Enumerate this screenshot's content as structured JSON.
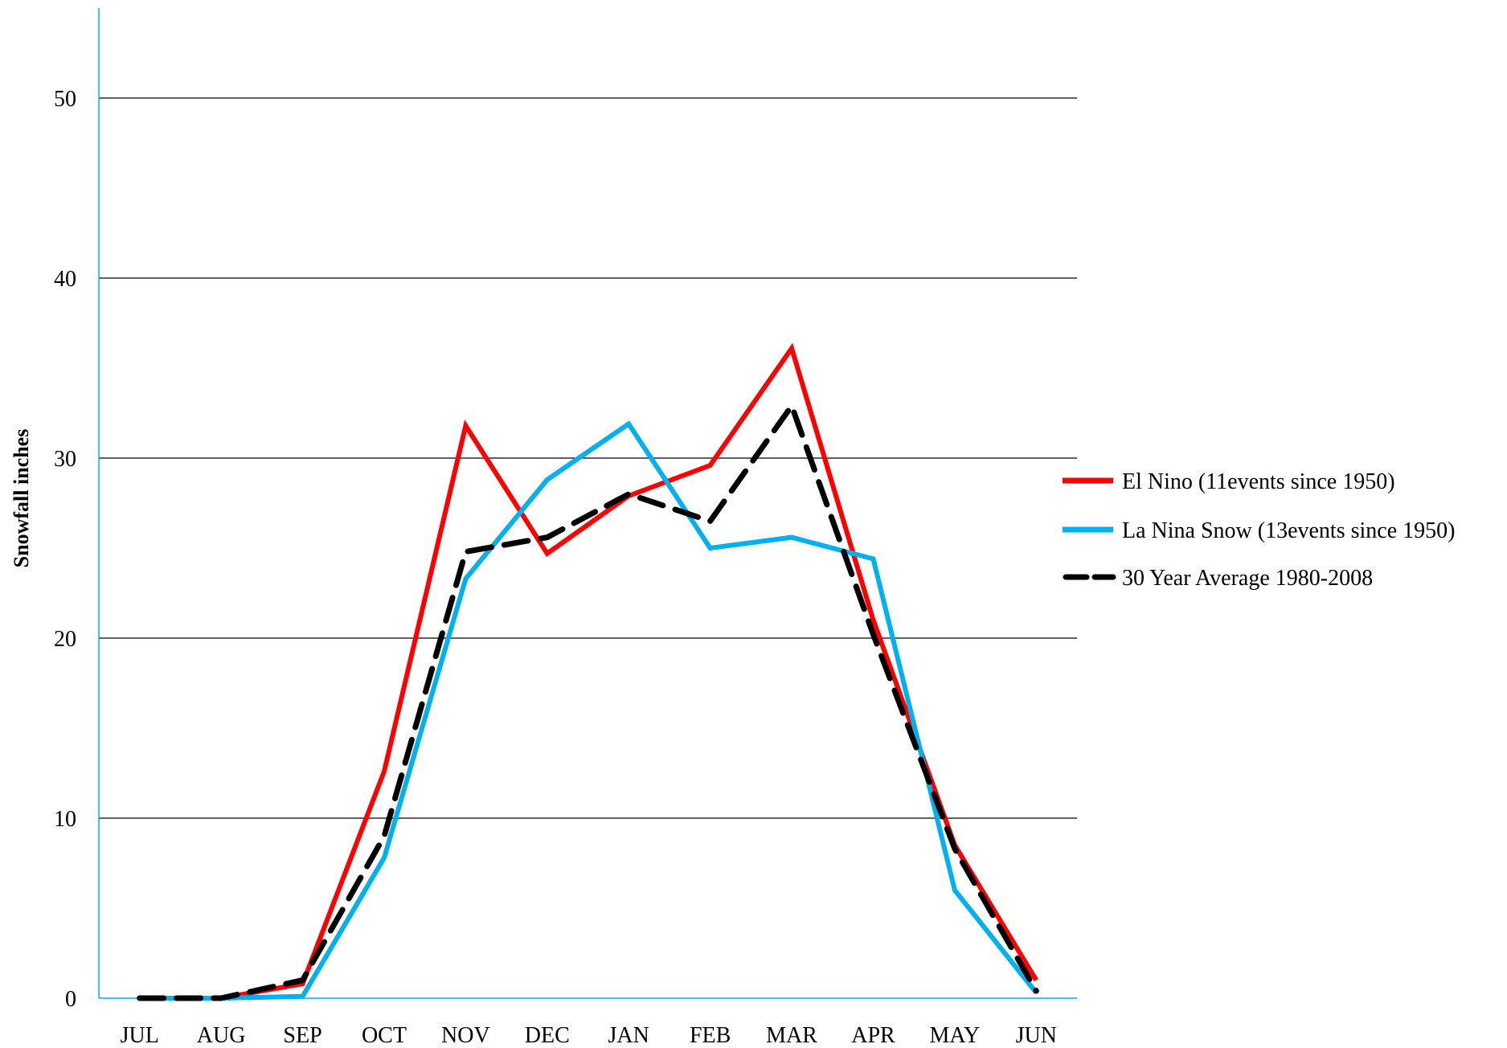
{
  "chart_data": {
    "type": "line",
    "title": "",
    "xlabel": "",
    "ylabel": "Snowfall inches",
    "ylim": [
      0,
      55
    ],
    "yticks": [
      0,
      10,
      20,
      30,
      40,
      50
    ],
    "grid": true,
    "legend_position": "right",
    "categories": [
      "JUL",
      "AUG",
      "SEP",
      "OCT",
      "NOV",
      "DEC",
      "JAN",
      "FEB",
      "MAR",
      "APR",
      "MAY",
      "JUN"
    ],
    "series": [
      {
        "name": "El Nino (11events since 1950)",
        "color": "#ff0000",
        "style": "solid",
        "values": [
          0,
          0,
          0.8,
          12.6,
          31.8,
          24.7,
          27.9,
          29.6,
          36.1,
          21.0,
          8.5,
          1.0
        ]
      },
      {
        "name": "La Nina Snow (13events since 1950)",
        "color": "#00b0f0",
        "style": "solid",
        "values": [
          0,
          0,
          0.1,
          7.8,
          23.3,
          28.8,
          31.9,
          25.0,
          25.6,
          24.4,
          6.0,
          0.3
        ]
      },
      {
        "name": "30 Year Average 1980-2008",
        "color": "#000000",
        "style": "dashed",
        "values": [
          0,
          0,
          1.0,
          9.0,
          24.8,
          25.6,
          28.0,
          26.5,
          32.9,
          20.2,
          8.3,
          0.4
        ]
      }
    ]
  }
}
